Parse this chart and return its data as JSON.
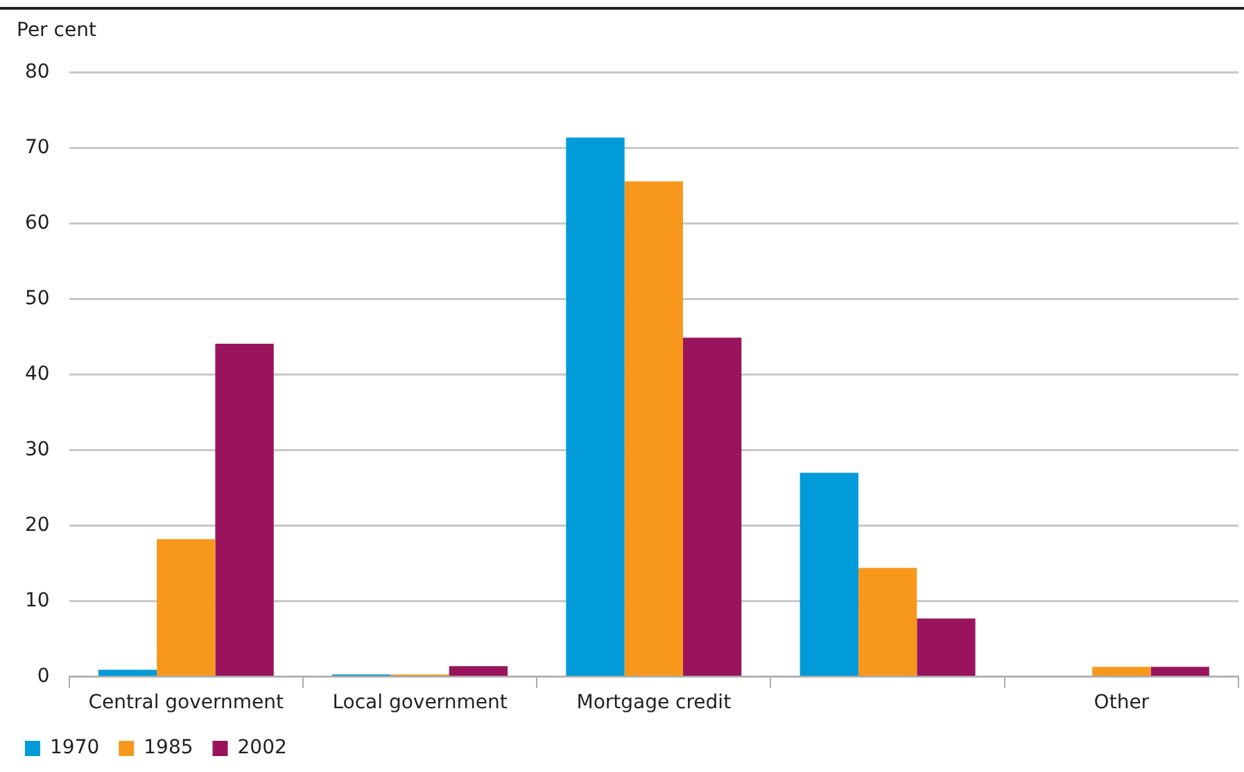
{
  "chart_data": {
    "type": "bar",
    "ylabel": "Per cent",
    "categories": [
      "Central government",
      "Local government",
      "Mortgage credit",
      null,
      "Other"
    ],
    "series": [
      {
        "name": "1970",
        "color": "#009bd8",
        "values": [
          0.9,
          0.3,
          71.4,
          27.0,
          0
        ]
      },
      {
        "name": "1985",
        "color": "#f7981d",
        "values": [
          18.2,
          0.3,
          65.6,
          14.4,
          1.3
        ]
      },
      {
        "name": "2002",
        "color": "#99145c",
        "values": [
          44.1,
          1.4,
          44.9,
          7.7,
          1.3
        ]
      }
    ],
    "ylim": [
      0,
      80
    ],
    "yticks": [
      0,
      10,
      20,
      30,
      40,
      50,
      60,
      70,
      80
    ],
    "grid": "y",
    "legend": "bottom"
  }
}
